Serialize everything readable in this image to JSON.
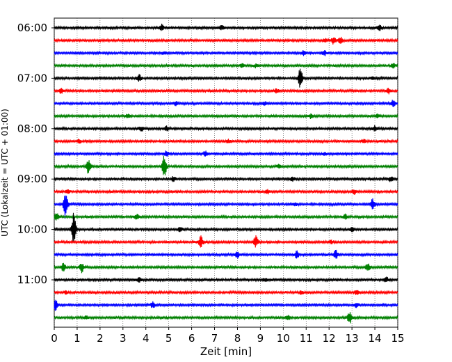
{
  "chart_data": {
    "type": "line",
    "title": "",
    "xlabel": "Zeit  [min]",
    "ylabel": "UTC (Lokalzeit = UTC + 01:00)",
    "x_ticks": [
      "0",
      "1",
      "2",
      "3",
      "4",
      "5",
      "6",
      "7",
      "8",
      "9",
      "10",
      "11",
      "12",
      "13",
      "14",
      "15"
    ],
    "xlim": [
      0,
      15
    ],
    "y_tick_labels": [
      "06:00",
      "07:00",
      "08:00",
      "09:00",
      "10:00",
      "11:00"
    ],
    "trace_interval_min": 15,
    "trace_colors": [
      "#000000",
      "#ff0000",
      "#0000ff",
      "#008000"
    ],
    "grid": "vertical dotted",
    "traces": [
      {
        "start": "06:00",
        "events": [
          {
            "t": 4.7,
            "amp": 0.35
          },
          {
            "t": 7.3,
            "amp": 0.3
          },
          {
            "t": 14.2,
            "amp": 0.4
          }
        ]
      },
      {
        "start": "06:15",
        "events": [
          {
            "t": 12.2,
            "amp": 0.4
          },
          {
            "t": 12.5,
            "amp": 0.35
          },
          {
            "t": 11.8,
            "amp": 0.2
          }
        ]
      },
      {
        "start": "06:30",
        "events": [
          {
            "t": 10.9,
            "amp": 0.3
          },
          {
            "t": 11.8,
            "amp": 0.3
          },
          {
            "t": 4.8,
            "amp": 0.15
          }
        ]
      },
      {
        "start": "06:45",
        "events": [
          {
            "t": 8.2,
            "amp": 0.25
          },
          {
            "t": 8.8,
            "amp": 0.2
          },
          {
            "t": 14.8,
            "amp": 0.25
          }
        ]
      },
      {
        "start": "07:00",
        "events": [
          {
            "t": 10.75,
            "amp": 1.3
          },
          {
            "t": 3.7,
            "amp": 0.4
          },
          {
            "t": 13.9,
            "amp": 0.2
          }
        ]
      },
      {
        "start": "07:15",
        "events": [
          {
            "t": 0.3,
            "amp": 0.3
          },
          {
            "t": 9.7,
            "amp": 0.25
          },
          {
            "t": 14.6,
            "amp": 0.3
          }
        ]
      },
      {
        "start": "07:30",
        "events": [
          {
            "t": 5.3,
            "amp": 0.25
          },
          {
            "t": 9.2,
            "amp": 0.2
          },
          {
            "t": 14.8,
            "amp": 0.4
          }
        ]
      },
      {
        "start": "07:45",
        "events": [
          {
            "t": 3.2,
            "amp": 0.2
          },
          {
            "t": 11.2,
            "amp": 0.25
          },
          {
            "t": 14.1,
            "amp": 0.2
          }
        ]
      },
      {
        "start": "08:00",
        "events": [
          {
            "t": 3.8,
            "amp": 0.3
          },
          {
            "t": 4.9,
            "amp": 0.3
          },
          {
            "t": 14.0,
            "amp": 0.3
          }
        ]
      },
      {
        "start": "08:15",
        "events": [
          {
            "t": 1.1,
            "amp": 0.2
          },
          {
            "t": 7.6,
            "amp": 0.2
          },
          {
            "t": 13.5,
            "amp": 0.2
          }
        ]
      },
      {
        "start": "08:30",
        "events": [
          {
            "t": 4.9,
            "amp": 0.3
          },
          {
            "t": 6.6,
            "amp": 0.3
          },
          {
            "t": 11.8,
            "amp": 0.2
          }
        ]
      },
      {
        "start": "08:45",
        "events": [
          {
            "t": 1.5,
            "amp": 0.9
          },
          {
            "t": 4.8,
            "amp": 1.3
          },
          {
            "t": 9.8,
            "amp": 0.2
          }
        ]
      },
      {
        "start": "09:00",
        "events": [
          {
            "t": 5.2,
            "amp": 0.3
          },
          {
            "t": 10.4,
            "amp": 0.25
          },
          {
            "t": 14.7,
            "amp": 0.3
          }
        ]
      },
      {
        "start": "09:15",
        "events": [
          {
            "t": 0.6,
            "amp": 0.25
          },
          {
            "t": 9.3,
            "amp": 0.25
          },
          {
            "t": 13.1,
            "amp": 0.25
          }
        ]
      },
      {
        "start": "09:30",
        "events": [
          {
            "t": 0.5,
            "amp": 1.8
          },
          {
            "t": 13.9,
            "amp": 0.6
          },
          {
            "t": 10.5,
            "amp": 0.2
          }
        ]
      },
      {
        "start": "09:45",
        "events": [
          {
            "t": 0.1,
            "amp": 0.5
          },
          {
            "t": 3.6,
            "amp": 0.35
          },
          {
            "t": 12.7,
            "amp": 0.25
          }
        ]
      },
      {
        "start": "10:00",
        "events": [
          {
            "t": 0.85,
            "amp": 1.9
          },
          {
            "t": 5.5,
            "amp": 0.3
          },
          {
            "t": 13.0,
            "amp": 0.3
          }
        ]
      },
      {
        "start": "10:15",
        "events": [
          {
            "t": 6.4,
            "amp": 0.7
          },
          {
            "t": 8.8,
            "amp": 0.7
          },
          {
            "t": 12.1,
            "amp": 0.2
          }
        ]
      },
      {
        "start": "10:30",
        "events": [
          {
            "t": 10.6,
            "amp": 0.5
          },
          {
            "t": 12.3,
            "amp": 0.5
          },
          {
            "t": 8.0,
            "amp": 0.4
          }
        ]
      },
      {
        "start": "10:45",
        "events": [
          {
            "t": 0.4,
            "amp": 0.5
          },
          {
            "t": 1.2,
            "amp": 0.6
          },
          {
            "t": 13.7,
            "amp": 0.5
          }
        ]
      },
      {
        "start": "11:00",
        "events": [
          {
            "t": 3.7,
            "amp": 0.25
          },
          {
            "t": 9.2,
            "amp": 0.2
          },
          {
            "t": 14.5,
            "amp": 0.3
          }
        ]
      },
      {
        "start": "11:15",
        "events": [
          {
            "t": 0.5,
            "amp": 0.15
          },
          {
            "t": 10.8,
            "amp": 0.2
          },
          {
            "t": 13.2,
            "amp": 0.25
          }
        ]
      },
      {
        "start": "11:30",
        "events": [
          {
            "t": 0.05,
            "amp": 0.7
          },
          {
            "t": 4.3,
            "amp": 0.35
          },
          {
            "t": 13.2,
            "amp": 0.25
          }
        ]
      },
      {
        "start": "11:45",
        "events": [
          {
            "t": 12.9,
            "amp": 0.7
          },
          {
            "t": 1.4,
            "amp": 0.2
          },
          {
            "t": 10.2,
            "amp": 0.25
          }
        ]
      }
    ]
  }
}
